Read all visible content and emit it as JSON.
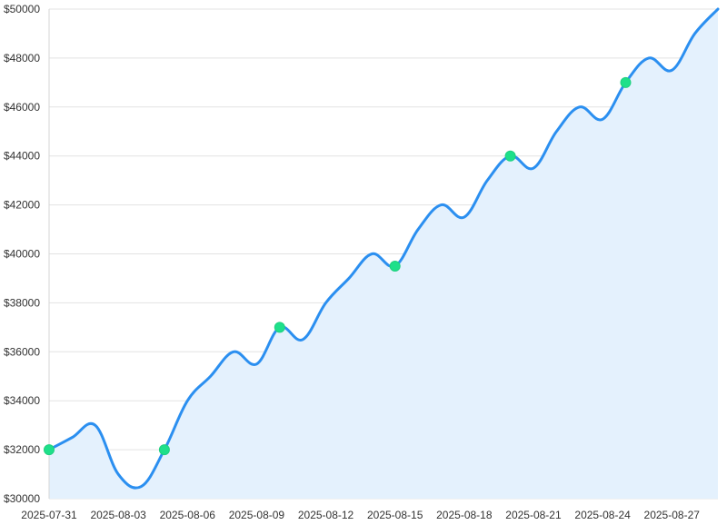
{
  "chart_data": {
    "type": "area",
    "title": "",
    "xlabel": "",
    "ylabel": "",
    "ylim": [
      30000,
      50000
    ],
    "y_ticks": [
      30000,
      32000,
      34000,
      36000,
      38000,
      40000,
      42000,
      44000,
      46000,
      48000,
      50000
    ],
    "y_tick_labels": [
      "$30000",
      "$32000",
      "$34000",
      "$36000",
      "$38000",
      "$40000",
      "$42000",
      "$44000",
      "$46000",
      "$48000",
      "$50000"
    ],
    "x_tick_labels": [
      "2025-07-31",
      "2025-08-03",
      "2025-08-06",
      "2025-08-09",
      "2025-08-12",
      "2025-08-15",
      "2025-08-18",
      "2025-08-21",
      "2025-08-24",
      "2025-08-27"
    ],
    "x": [
      "2025-07-31",
      "2025-08-01",
      "2025-08-02",
      "2025-08-03",
      "2025-08-04",
      "2025-08-05",
      "2025-08-06",
      "2025-08-07",
      "2025-08-08",
      "2025-08-09",
      "2025-08-10",
      "2025-08-11",
      "2025-08-12",
      "2025-08-13",
      "2025-08-14",
      "2025-08-15",
      "2025-08-16",
      "2025-08-17",
      "2025-08-18",
      "2025-08-19",
      "2025-08-20",
      "2025-08-21",
      "2025-08-22",
      "2025-08-23",
      "2025-08-24",
      "2025-08-25",
      "2025-08-26",
      "2025-08-27",
      "2025-08-28",
      "2025-08-29"
    ],
    "series": [
      {
        "values": [
          32000,
          32500,
          33000,
          31000,
          30500,
          32000,
          34000,
          35000,
          36000,
          35500,
          37000,
          36500,
          38000,
          39000,
          40000,
          39500,
          41000,
          42000,
          41500,
          43000,
          44000,
          43500,
          45000,
          46000,
          45500,
          47000,
          48000,
          47500,
          49000,
          50000
        ],
        "color": "#2b8ff0",
        "fill": "#e4f1fd"
      }
    ],
    "highlighted_points": [
      {
        "x": "2025-07-31",
        "y": 32000
      },
      {
        "x": "2025-08-05",
        "y": 32000
      },
      {
        "x": "2025-08-10",
        "y": 37000
      },
      {
        "x": "2025-08-15",
        "y": 39500
      },
      {
        "x": "2025-08-20",
        "y": 44000
      },
      {
        "x": "2025-08-25",
        "y": 47000
      }
    ],
    "marker_color": "#1ee08a",
    "grid": true,
    "legend": "none"
  }
}
